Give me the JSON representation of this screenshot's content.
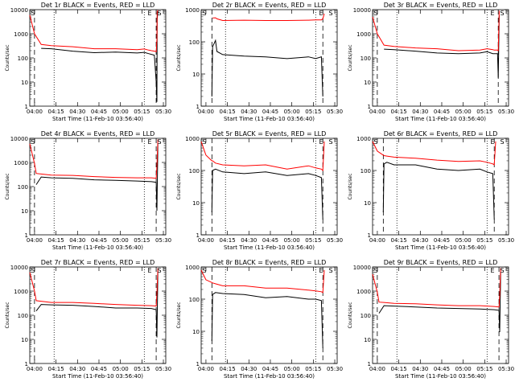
{
  "x_ticks": [
    "04:00",
    "04:15",
    "04:30",
    "04:45",
    "05:00",
    "05:15",
    "05:30"
  ],
  "y_ticks": [
    "1",
    "10",
    "100",
    "1000",
    "10000"
  ],
  "ylabel": "Counts/sec",
  "xlabel": "Start Time (11-Feb-10 03:56:40)",
  "marker_labels": [
    "S",
    "E",
    "S"
  ],
  "colors": {
    "events": "#000000",
    "lld": "#ff0000",
    "frame": "#000000"
  },
  "chart_data": [
    {
      "type": "line",
      "title": "Det 1r BLACK = Events, RED = LLD",
      "ylim": [
        1,
        10000
      ],
      "yscale": "log",
      "x_min": [
        0,
        3.3,
        8,
        15,
        30,
        45,
        60,
        75,
        80,
        83,
        85,
        87,
        88.3,
        88.8,
        89,
        89.5,
        92
      ],
      "series": [
        {
          "name": "Events",
          "y": [
            null,
            null,
            250,
            240,
            190,
            165,
            175,
            160,
            170,
            150,
            140,
            130,
            10,
            1.5,
            4000,
            8000,
            null
          ]
        },
        {
          "name": "LLD",
          "y": [
            6000,
            1000,
            360,
            320,
            290,
            240,
            240,
            220,
            235,
            210,
            200,
            190,
            180,
            600,
            8000,
            9500,
            null
          ]
        }
      ],
      "dashed_x_min": [
        3.3,
        88.3
      ],
      "dotted_x_min": [
        17,
        80
      ]
    },
    {
      "type": "line",
      "title": "Det 2r BLACK = Events, RED = LLD",
      "ylim": [
        1,
        1000
      ],
      "yscale": "log",
      "x_min": [
        7.5,
        8,
        10,
        11,
        15,
        30,
        45,
        60,
        75,
        80,
        84,
        85,
        86
      ],
      "series": [
        {
          "name": "Events",
          "y": [
            2,
            70,
            110,
            50,
            40,
            36,
            34,
            30,
            34,
            30,
            34,
            2,
            null
          ]
        },
        {
          "name": "LLD",
          "y": [
            null,
            550,
            560,
            520,
            460,
            470,
            460,
            460,
            470,
            480,
            480,
            520,
            750
          ]
        }
      ],
      "dashed_x_min": [
        7.5,
        85
      ],
      "dotted_x_min": [
        17,
        80
      ]
    },
    {
      "type": "line",
      "title": "Det 3r BLACK = Events, RED = LLD",
      "ylim": [
        1,
        10000
      ],
      "yscale": "log",
      "x_min": [
        0,
        3.3,
        8,
        15,
        30,
        45,
        60,
        75,
        80,
        84,
        85,
        87.3,
        87.8,
        88.5,
        92
      ],
      "series": [
        {
          "name": "Events",
          "y": [
            null,
            null,
            230,
            220,
            190,
            160,
            150,
            160,
            180,
            150,
            150,
            150,
            15,
            6000,
            null
          ]
        },
        {
          "name": "LLD",
          "y": [
            5000,
            1000,
            340,
            300,
            260,
            240,
            200,
            210,
            240,
            220,
            210,
            210,
            200,
            9000,
            null
          ]
        }
      ],
      "dashed_x_min": [
        3.3,
        87.8
      ],
      "dotted_x_min": [
        17,
        80
      ]
    },
    {
      "type": "line",
      "title": "Det 4r BLACK = Events, RED = LLD",
      "ylim": [
        1,
        10000
      ],
      "yscale": "log",
      "x_min": [
        0,
        3.3,
        4.5,
        8,
        15,
        30,
        45,
        60,
        75,
        85,
        88.3,
        88.8,
        89.5,
        92
      ],
      "series": [
        {
          "name": "Events",
          "y": [
            null,
            null,
            120,
            250,
            230,
            220,
            190,
            180,
            170,
            160,
            150,
            10,
            6000,
            null
          ]
        },
        {
          "name": "LLD",
          "y": [
            6000,
            900,
            350,
            330,
            300,
            290,
            260,
            240,
            230,
            230,
            220,
            700,
            9000,
            null
          ]
        }
      ],
      "dashed_x_min": [
        3.3,
        88.3
      ],
      "dotted_x_min": [
        17,
        80
      ]
    },
    {
      "type": "line",
      "title": "Det 5r BLACK = Events, RED = LLD",
      "ylim": [
        1,
        1000
      ],
      "yscale": "log",
      "x_min": [
        0,
        3.3,
        7.5,
        8,
        10,
        15,
        30,
        45,
        60,
        75,
        80,
        84,
        85,
        86
      ],
      "series": [
        {
          "name": "Events",
          "y": [
            null,
            null,
            5,
            100,
            110,
            90,
            80,
            90,
            70,
            80,
            70,
            60,
            3,
            null
          ]
        },
        {
          "name": "LLD",
          "y": [
            800,
            300,
            200,
            200,
            170,
            150,
            140,
            150,
            110,
            140,
            120,
            110,
            100,
            800
          ]
        }
      ],
      "dashed_x_min": [
        7.5,
        85
      ],
      "dotted_x_min": [
        17,
        80
      ]
    },
    {
      "type": "line",
      "title": "Det 6r BLACK = Events, RED = LLD",
      "ylim": [
        1,
        1000
      ],
      "yscale": "log",
      "x_min": [
        0,
        3.3,
        7.5,
        8,
        10,
        15,
        30,
        45,
        60,
        75,
        80,
        84,
        85,
        86
      ],
      "series": [
        {
          "name": "Events",
          "y": [
            null,
            null,
            5,
            160,
            180,
            150,
            150,
            110,
            100,
            110,
            90,
            80,
            3,
            null
          ]
        },
        {
          "name": "LLD",
          "y": [
            800,
            400,
            300,
            290,
            280,
            260,
            240,
            210,
            190,
            200,
            180,
            160,
            150,
            800
          ]
        }
      ],
      "dashed_x_min": [
        7.5,
        85
      ],
      "dotted_x_min": [
        17,
        80
      ]
    },
    {
      "type": "line",
      "title": "Det 7r BLACK = Events, RED = LLD",
      "ylim": [
        1,
        10000
      ],
      "yscale": "log",
      "x_min": [
        0,
        3.3,
        4.5,
        8,
        15,
        30,
        45,
        60,
        75,
        85,
        88.3,
        88.8,
        89.5,
        92
      ],
      "series": [
        {
          "name": "Events",
          "y": [
            null,
            null,
            150,
            280,
            270,
            260,
            230,
            200,
            200,
            190,
            170,
            12,
            7000,
            null
          ]
        },
        {
          "name": "LLD",
          "y": [
            6000,
            1000,
            400,
            380,
            340,
            340,
            310,
            280,
            260,
            250,
            240,
            800,
            9000,
            null
          ]
        }
      ],
      "dashed_x_min": [
        3.3,
        88.3
      ],
      "dotted_x_min": [
        17,
        80
      ]
    },
    {
      "type": "line",
      "title": "Det 8r BLACK = Events, RED = LLD",
      "ylim": [
        1,
        1000
      ],
      "yscale": "log",
      "x_min": [
        0,
        3.3,
        7.5,
        8,
        10,
        15,
        30,
        45,
        60,
        75,
        80,
        84,
        85,
        86
      ],
      "series": [
        {
          "name": "Events",
          "y": [
            null,
            null,
            5,
            140,
            160,
            150,
            140,
            110,
            120,
            100,
            100,
            90,
            3,
            null
          ]
        },
        {
          "name": "LLD",
          "y": [
            800,
            400,
            330,
            320,
            300,
            260,
            260,
            220,
            220,
            190,
            180,
            170,
            160,
            800
          ]
        }
      ],
      "dashed_x_min": [
        7.5,
        85
      ],
      "dotted_x_min": [
        17,
        80
      ]
    },
    {
      "type": "line",
      "title": "Det 9r BLACK = Events, RED = LLD",
      "ylim": [
        1,
        10000
      ],
      "yscale": "log",
      "x_min": [
        0,
        3.3,
        4.5,
        8,
        15,
        30,
        45,
        60,
        75,
        85,
        88.3,
        88.8,
        89.5,
        92
      ],
      "series": [
        {
          "name": "Events",
          "y": [
            null,
            null,
            120,
            250,
            240,
            220,
            200,
            190,
            180,
            170,
            160,
            20,
            6000,
            null
          ]
        },
        {
          "name": "LLD",
          "y": [
            5000,
            900,
            350,
            340,
            310,
            300,
            270,
            250,
            250,
            230,
            220,
            700,
            9000,
            null
          ]
        }
      ],
      "dashed_x_min": [
        3.3,
        88.3
      ],
      "dotted_x_min": [
        17,
        80
      ]
    }
  ]
}
